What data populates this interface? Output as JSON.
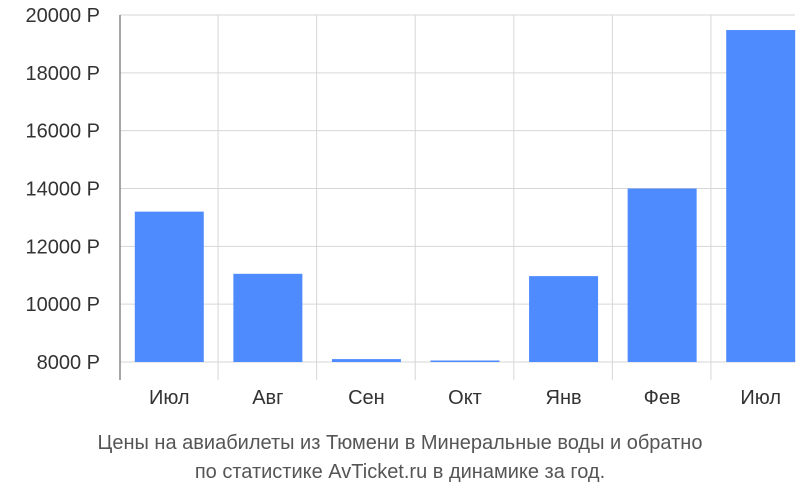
{
  "chart_data": {
    "type": "bar",
    "categories": [
      "Июл",
      "Авг",
      "Сен",
      "Окт",
      "Янв",
      "Фев",
      "Июл"
    ],
    "values": [
      13200,
      11050,
      8100,
      8030,
      10970,
      14000,
      19480
    ],
    "yticks": [
      8000,
      10000,
      12000,
      14000,
      16000,
      18000,
      20000
    ],
    "ytick_suffix": " Р",
    "ylim": [
      8000,
      20000
    ],
    "grid": true,
    "bar_color": "#4d8bff",
    "title_line1": "Цены на авиабилеты из Тюмени в Минеральные воды и обратно",
    "title_line2": "по статистике AvTicket.ru в динамике за год."
  }
}
